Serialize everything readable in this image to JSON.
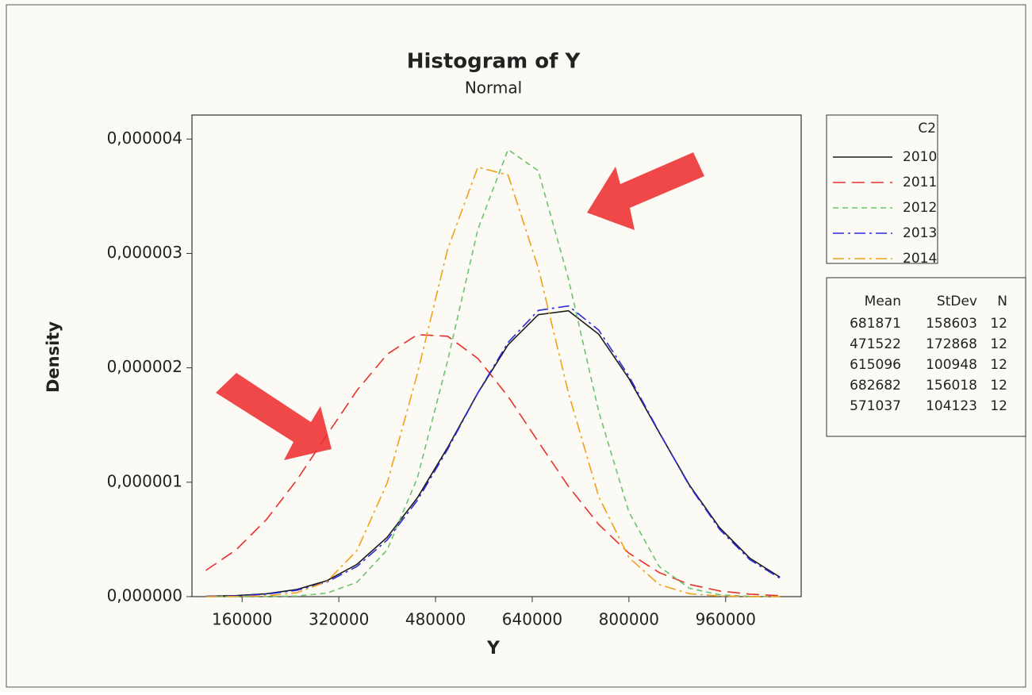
{
  "chart_data": {
    "type": "line",
    "title": "Histogram of Y",
    "subtitle": "Normal",
    "x_label": "Y",
    "y_label": "Density",
    "legend_title": "C2",
    "x": [
      100000,
      150000,
      200000,
      250000,
      300000,
      350000,
      400000,
      450000,
      500000,
      550000,
      600000,
      650000,
      700000,
      750000,
      800000,
      850000,
      900000,
      950000,
      1000000,
      1050000
    ],
    "series": [
      {
        "name": "2010",
        "color": "#1a1a1a",
        "dash": "solid",
        "values": [
          3e-09,
          9.1e-09,
          2.49e-08,
          6.18e-08,
          1.386e-07,
          2.817e-07,
          5.185e-07,
          8.643e-07,
          1.3032e-06,
          1.7802e-06,
          2.2017e-06,
          2.4651e-06,
          2.499e-06,
          2.2935e-06,
          1.9062e-06,
          1.434e-06,
          9.767e-07,
          6.024e-07,
          3.366e-07,
          1.7e-07
        ]
      },
      {
        "name": "2011",
        "color": "#e8302c",
        "dash": "long-dash",
        "values": [
          2.292e-07,
          4.092e-07,
          6.72e-07,
          1.0154e-06,
          1.4108e-06,
          1.8026e-06,
          2.1186e-06,
          2.29e-06,
          2.2766e-06,
          2.0819e-06,
          1.7509e-06,
          1.3542e-06,
          9.635e-07,
          6.305e-07,
          3.794e-07,
          2.1e-07,
          1.069e-07,
          5.01e-08,
          2.16e-08,
          8.5e-09
        ]
      },
      {
        "name": "2012",
        "color": "#6cc46c",
        "dash": "short-dash",
        "values": [
          0,
          1e-10,
          8e-10,
          5.7e-09,
          3.03e-08,
          1.257e-07,
          4.083e-07,
          1.0378e-06,
          2.063e-06,
          3.2102e-06,
          3.9081e-06,
          3.7228e-06,
          2.7747e-06,
          1.618e-06,
          7.382e-07,
          2.636e-07,
          7.37e-08,
          1.61e-08,
          2.8e-09,
          4e-10
        ]
      },
      {
        "name": "2013",
        "color": "#2a2ae0",
        "dash": "dash-dot",
        "values": [
          2.4e-09,
          7.5e-09,
          2.13e-08,
          5.47e-08,
          1.263e-07,
          2.634e-07,
          4.953e-07,
          8.41e-07,
          1.2882e-06,
          1.7812e-06,
          2.222e-06,
          2.5015e-06,
          2.5413e-06,
          2.3297e-06,
          1.9275e-06,
          1.4388e-06,
          9.694e-07,
          5.891e-07,
          3.232e-07,
          1.601e-07
        ]
      },
      {
        "name": "2014",
        "color": "#f2a019",
        "dash": "dash-dot",
        "values": [
          1e-10,
          1.1e-09,
          6.7e-09,
          3.3e-08,
          1.295e-07,
          4.027e-07,
          9.939e-07,
          1.949e-06,
          3.036e-06,
          3.754e-06,
          3.6854e-06,
          2.8728e-06,
          1.7782e-06,
          8.74e-07,
          3.41e-07,
          1.057e-07,
          2.6e-08,
          5.1e-09,
          8e-10,
          1e-10
        ]
      }
    ],
    "xlim": [
      77000,
      1085000
    ],
    "xticks": [
      160000,
      320000,
      480000,
      640000,
      800000,
      960000
    ],
    "ylim": [
      0,
      4.21e-06
    ],
    "yticks": [
      {
        "value": 0,
        "label": "0,000000"
      },
      {
        "value": 1e-06,
        "label": "0,000001"
      },
      {
        "value": 2e-06,
        "label": "0,000002"
      },
      {
        "value": 3e-06,
        "label": "0,000003"
      },
      {
        "value": 4e-06,
        "label": "0,000004"
      }
    ],
    "grid": false,
    "stats": {
      "columns": [
        "Mean",
        "StDev",
        "N"
      ],
      "rows": [
        [
          681871,
          158603,
          12
        ],
        [
          471522,
          172868,
          12
        ],
        [
          615096,
          100948,
          12
        ],
        [
          682682,
          156018,
          12
        ],
        [
          571037,
          104123,
          12
        ]
      ]
    }
  }
}
